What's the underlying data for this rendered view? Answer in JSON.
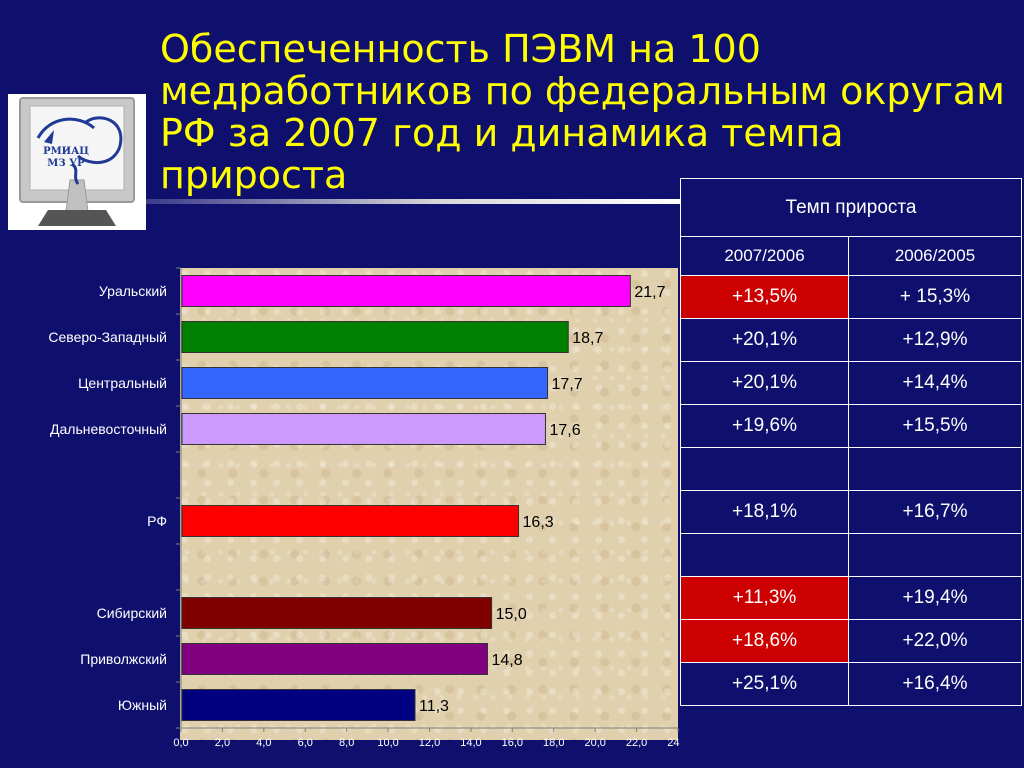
{
  "title": "Обеспеченность ПЭВМ на 100 медработников по федеральным округам РФ за 2007 год и динамика темпа прироста",
  "logo": {
    "line1": "РМИАЦ",
    "line2": "МЗ УР"
  },
  "colors": {
    "background": "#0f0f6e",
    "title": "#ffff00",
    "highlight_cell": "#cc0000"
  },
  "chart_data": {
    "type": "bar",
    "orientation": "horizontal",
    "categories": [
      "Уральский",
      "Северо-Западный",
      "Центральный",
      "Дальневосточный",
      "",
      "РФ",
      "",
      "Сибирский",
      "Приволжский",
      "Южный"
    ],
    "values": [
      21.7,
      18.7,
      17.7,
      17.6,
      null,
      16.3,
      null,
      15.0,
      14.8,
      11.3
    ],
    "value_labels": [
      "21,7",
      "18,7",
      "17,7",
      "17,6",
      "",
      "16,3",
      "",
      "15,0",
      "14,8",
      "11,3"
    ],
    "bar_colors": [
      "#ff00ff",
      "#008000",
      "#3366ff",
      "#cc99ff",
      "",
      "#ff0000",
      "",
      "#800000",
      "#800080",
      "#000080"
    ],
    "xlim": [
      0,
      24
    ],
    "xticks": [
      0,
      2,
      4,
      6,
      8,
      10,
      12,
      14,
      16,
      18,
      20,
      22,
      24
    ],
    "xtick_labels": [
      "0,0",
      "2,0",
      "4,0",
      "6,0",
      "8,0",
      "10,0",
      "12,0",
      "14,0",
      "16,0",
      "18,0",
      "20,0",
      "22,0",
      "24,0"
    ],
    "grid": false,
    "legend": "none"
  },
  "growth_table": {
    "header": "Темп прироста",
    "columns": [
      "2007/2006",
      "2006/2005"
    ],
    "rows": [
      {
        "a": "+13,5%",
        "b": "+ 15,3%",
        "a_red": true
      },
      {
        "a": "+20,1%",
        "b": "+12,9%",
        "a_red": false
      },
      {
        "a": "+20,1%",
        "b": "+14,4%",
        "a_red": false
      },
      {
        "a": "+19,6%",
        "b": "+15,5%",
        "a_red": false
      },
      {
        "a": "",
        "b": "",
        "a_red": false
      },
      {
        "a": "+18,1%",
        "b": "+16,7%",
        "a_red": false
      },
      {
        "a": "",
        "b": "",
        "a_red": false
      },
      {
        "a": "+11,3%",
        "b": "+19,4%",
        "a_red": true
      },
      {
        "a": "+18,6%",
        "b": "+22,0%",
        "a_red": true
      },
      {
        "a": "+25,1%",
        "b": "+16,4%",
        "a_red": false
      }
    ]
  }
}
